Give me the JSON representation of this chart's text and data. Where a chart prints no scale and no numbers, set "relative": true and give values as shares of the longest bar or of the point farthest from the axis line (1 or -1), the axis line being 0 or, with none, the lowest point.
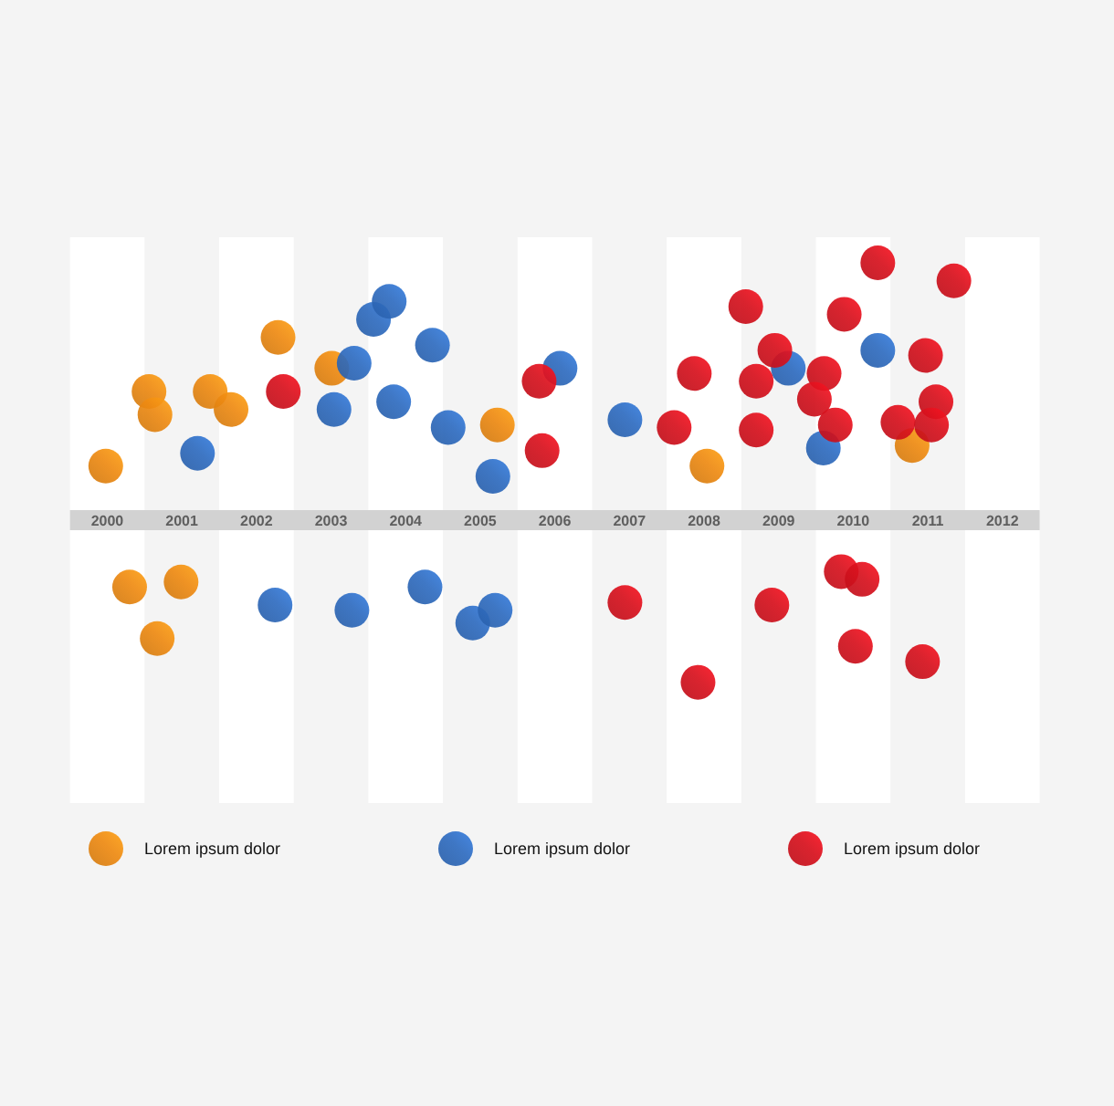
{
  "chart_data": {
    "type": "scatter",
    "relative": true,
    "marker": "circle",
    "legend": "bottom",
    "xlim": [
      1999.5,
      2012.5
    ],
    "xticks": [
      2000,
      2001,
      2002,
      2003,
      2004,
      2005,
      2006,
      2007,
      2008,
      2009,
      2010,
      2011,
      2012
    ],
    "bands": [
      {
        "axis": "x",
        "from": 1999.5,
        "to": 2000.5,
        "color": "#ffffff"
      },
      {
        "axis": "x",
        "from": 2001.5,
        "to": 2002.5,
        "color": "#ffffff"
      },
      {
        "axis": "x",
        "from": 2003.5,
        "to": 2004.5,
        "color": "#ffffff"
      },
      {
        "axis": "x",
        "from": 2005.5,
        "to": 2006.5,
        "color": "#ffffff"
      },
      {
        "axis": "x",
        "from": 2007.5,
        "to": 2008.5,
        "color": "#ffffff"
      },
      {
        "axis": "x",
        "from": 2009.5,
        "to": 2010.5,
        "color": "#ffffff"
      },
      {
        "axis": "x",
        "from": 2011.5,
        "to": 2012.5,
        "color": "#ffffff"
      }
    ],
    "series": [
      {
        "name": "Lorem ipsum dolor",
        "color": "#ee8a12",
        "x": [
          1999.98,
          2000.56,
          2000.64,
          2001.38,
          2001.66,
          2002.29,
          2003.01,
          2005.23,
          2008.04,
          2010.79,
          2000.3,
          2000.99,
          2000.67
        ],
        "values": [
          0.21,
          0.5,
          0.41,
          0.5,
          0.43,
          0.71,
          0.59,
          0.37,
          0.21,
          0.29,
          -0.26,
          -0.24,
          -0.46
        ]
      },
      {
        "name": "Lorem ipsum dolor",
        "color": "#2f6cc0",
        "x": [
          2001.21,
          2003.04,
          2003.31,
          2003.57,
          2003.78,
          2003.84,
          2004.36,
          2004.57,
          2005.17,
          2006.07,
          2006.94,
          2009.13,
          2009.6,
          2010.33,
          2002.25,
          2003.28,
          2004.26,
          2004.9,
          2005.2
        ],
        "values": [
          0.26,
          0.43,
          0.61,
          0.78,
          0.85,
          0.46,
          0.68,
          0.36,
          0.17,
          0.59,
          0.39,
          0.59,
          0.28,
          0.66,
          -0.33,
          -0.35,
          -0.26,
          -0.4,
          -0.35
        ]
      },
      {
        "name": "Lorem ipsum dolor",
        "color": "#d7111d",
        "x": [
          2002.36,
          2005.79,
          2005.83,
          2007.6,
          2007.87,
          2008.56,
          2008.7,
          2008.95,
          2008.7,
          2009.61,
          2009.48,
          2009.76,
          2009.88,
          2010.33,
          2010.97,
          2011.35,
          2011.11,
          2010.6,
          2011.05,
          2006.94,
          2007.92,
          2008.91,
          2009.84,
          2010.12,
          2010.03,
          2010.93
        ],
        "values": [
          0.5,
          0.54,
          0.27,
          0.36,
          0.57,
          0.83,
          0.54,
          0.66,
          0.35,
          0.57,
          0.47,
          0.37,
          0.8,
          1.0,
          0.64,
          0.93,
          0.46,
          0.38,
          0.37,
          -0.32,
          -0.63,
          -0.33,
          -0.2,
          -0.23,
          -0.49,
          -0.55
        ]
      }
    ]
  }
}
